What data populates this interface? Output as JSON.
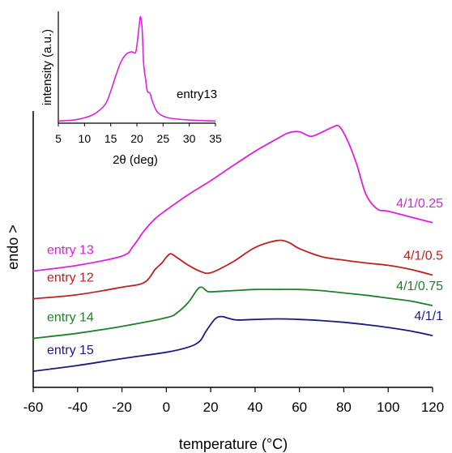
{
  "chart_data": [
    {
      "type": "line",
      "xlabel": "temperature (°C)",
      "ylabel": "endo >",
      "xlim": [
        -60,
        120
      ],
      "xticks": [
        "-60",
        "-40",
        "-20",
        "0",
        "20",
        "40",
        "60",
        "80",
        "100",
        "120"
      ],
      "grid": false,
      "series": [
        {
          "name": "entry 13",
          "ratio": "4/1/0.25",
          "color": "#e020e0",
          "x": [
            -60,
            -40,
            -20,
            -15,
            -10,
            -5,
            0,
            10,
            20,
            30,
            40,
            50,
            55,
            60,
            65,
            70,
            75,
            78,
            82,
            86,
            90,
            95,
            100,
            110,
            120
          ],
          "y": [
            0.2,
            1.2,
            2.8,
            4.5,
            7.2,
            9.3,
            10.8,
            13.5,
            15.9,
            18.5,
            21.0,
            23.2,
            24.2,
            24.4,
            23.6,
            24.3,
            25.2,
            25.3,
            22.6,
            18.5,
            13.5,
            11.0,
            10.6,
            9.6,
            8.6
          ]
        },
        {
          "name": "entry 12",
          "ratio": "4/1/0.5",
          "color": "#c02020",
          "x": [
            -60,
            -40,
            -20,
            -10,
            -5,
            -2,
            0,
            2,
            5,
            10,
            15,
            20,
            30,
            40,
            50,
            55,
            60,
            70,
            80,
            90,
            100,
            110,
            120
          ],
          "y": [
            -4.6,
            -3.9,
            -2.6,
            -1.8,
            0.5,
            1.6,
            2.6,
            3.2,
            2.5,
            1.2,
            0.2,
            -0.1,
            1.8,
            4.3,
            5.5,
            5.2,
            4.1,
            2.7,
            2.1,
            1.6,
            1.2,
            0.5,
            -0.5
          ]
        },
        {
          "name": "entry 14",
          "ratio": "4/1/0.75",
          "color": "#20802a",
          "x": [
            -60,
            -40,
            -20,
            0,
            5,
            10,
            14,
            16,
            18,
            20,
            30,
            40,
            50,
            60,
            70,
            80,
            90,
            100,
            110,
            120
          ],
          "y": [
            -11.5,
            -10.6,
            -9.4,
            -7.9,
            -7.0,
            -5.2,
            -3.0,
            -2.6,
            -3.2,
            -3.4,
            -3.2,
            -3.0,
            -3.0,
            -3.0,
            -3.2,
            -3.6,
            -4.0,
            -4.5,
            -5.0,
            -5.8
          ]
        },
        {
          "name": "entry 15",
          "ratio": "4/1/1",
          "color": "#1c1a80",
          "x": [
            -60,
            -40,
            -20,
            0,
            10,
            15,
            18,
            22,
            25,
            28,
            32,
            40,
            50,
            60,
            70,
            80,
            90,
            100,
            110,
            120
          ],
          "y": [
            -17.2,
            -16.2,
            -15.0,
            -13.9,
            -13.0,
            -12.0,
            -10.2,
            -8.1,
            -7.7,
            -8.0,
            -8.3,
            -8.2,
            -8.1,
            -8.2,
            -8.4,
            -8.7,
            -9.1,
            -9.6,
            -10.2,
            -11.0
          ]
        }
      ],
      "ylim": [
        -20,
        28
      ]
    },
    {
      "type": "line",
      "title": "entry13",
      "xlabel": "2θ (deg)",
      "ylabel": "intensity (a.u.)",
      "xlim": [
        5,
        35
      ],
      "xticks": [
        "5",
        "10",
        "15",
        "20",
        "25",
        "30",
        "35"
      ],
      "ylim": [
        0,
        1.05
      ],
      "grid": false,
      "series": [
        {
          "color": "#e020e0",
          "x": [
            5,
            8,
            10,
            12,
            14,
            15,
            16,
            17,
            18,
            19,
            19.7,
            20,
            20.4,
            20.7,
            21,
            21.3,
            21.7,
            22,
            22.5,
            23,
            24,
            26,
            30,
            35
          ],
          "y": [
            0.02,
            0.03,
            0.05,
            0.09,
            0.18,
            0.3,
            0.45,
            0.58,
            0.65,
            0.67,
            0.66,
            0.73,
            0.9,
            1.0,
            0.88,
            0.55,
            0.4,
            0.3,
            0.28,
            0.2,
            0.1,
            0.05,
            0.03,
            0.02
          ]
        }
      ]
    }
  ]
}
